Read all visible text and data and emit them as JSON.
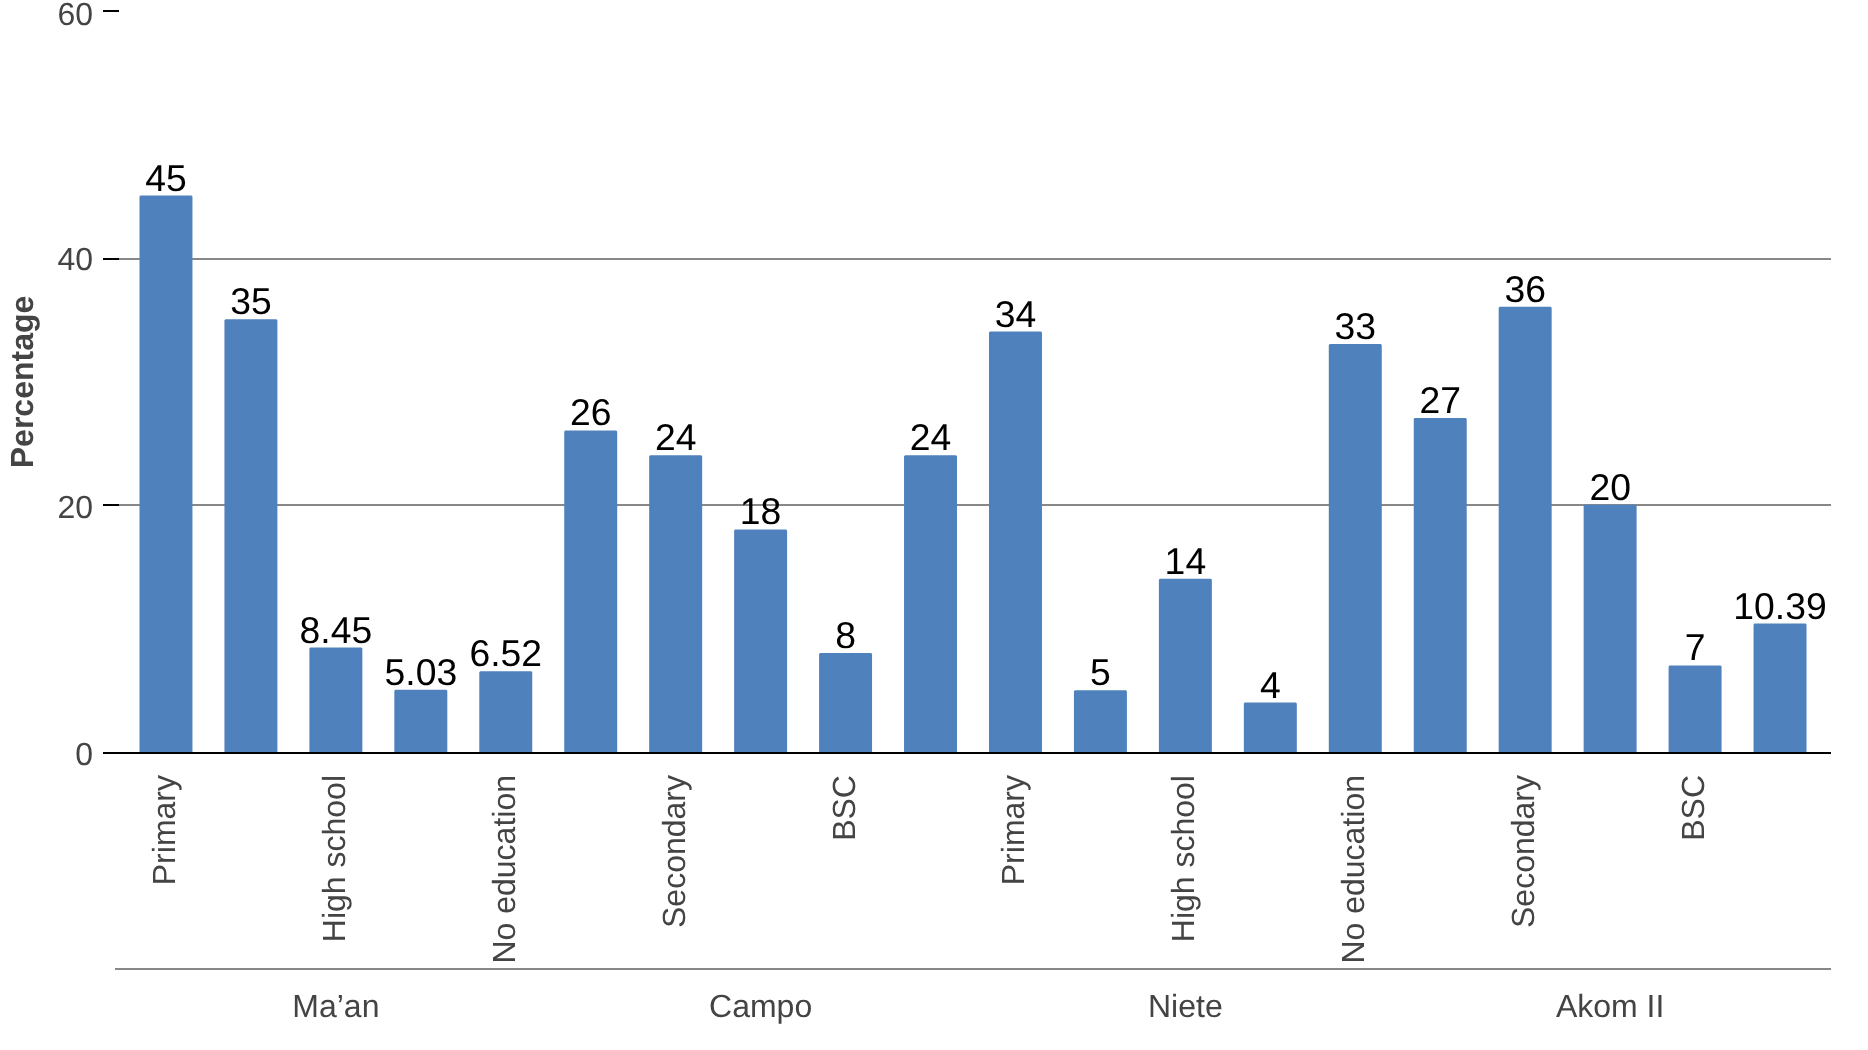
{
  "chart_data": {
    "type": "bar",
    "ylabel": "Percentage",
    "categories": [
      "Primary",
      null,
      "High school",
      null,
      "No education",
      null,
      "Secondary",
      null,
      "BSC",
      null,
      "Primary",
      null,
      "High school",
      null,
      "No education",
      null,
      "Secondary",
      null,
      "BSC",
      null
    ],
    "values": [
      45,
      35,
      8.45,
      5.03,
      6.52,
      26,
      24,
      18,
      8,
      24,
      34,
      5,
      14,
      4,
      33,
      27,
      36,
      20,
      7,
      10.39
    ],
    "color": "#4f81bd",
    "ylim": [
      0,
      60
    ],
    "yticks": [
      0,
      20,
      40,
      60
    ],
    "grid": "y",
    "data_labels": true,
    "annotations": [
      "Ma’an",
      "Campo",
      "Niete",
      "Akom II"
    ]
  }
}
